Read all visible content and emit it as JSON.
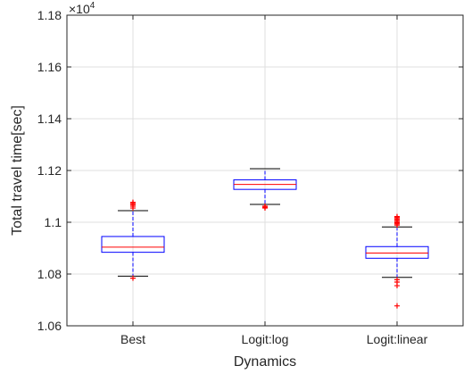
{
  "chart_data": {
    "type": "boxplot",
    "title": "",
    "xlabel": "Dynamics",
    "ylabel": "Total travel time[sec]",
    "y_exponent_label": "×10",
    "y_exponent_power": "4",
    "categories": [
      "Best",
      "Logit:log",
      "Logit:linear"
    ],
    "ylim": [
      1.06,
      1.18
    ],
    "yticks": [
      1.06,
      1.08,
      1.1,
      1.12,
      1.14,
      1.16,
      1.18
    ],
    "ytick_labels": [
      "1.06",
      "1.08",
      "1.1",
      "1.12",
      "1.14",
      "1.16",
      "1.18"
    ],
    "grid": true,
    "box_color": "#0000ff",
    "median_color": "#ff0000",
    "outlier_color": "#ff0000",
    "boxes": [
      {
        "category": "Best",
        "whisker_low": 1.0792,
        "q1": 1.0884,
        "median": 1.0904,
        "q3": 1.0945,
        "whisker_high": 1.1045,
        "outliers": [
          1.1055,
          1.1062,
          1.1068,
          1.1073,
          1.1077,
          1.0784
        ]
      },
      {
        "category": "Logit:log",
        "whisker_low": 1.1069,
        "q1": 1.1127,
        "median": 1.1146,
        "q3": 1.1164,
        "whisker_high": 1.1207,
        "outliers": [
          1.1058,
          1.1062,
          1.1055
        ]
      },
      {
        "category": "Logit:linear",
        "whisker_low": 1.0787,
        "q1": 1.0861,
        "median": 1.0881,
        "q3": 1.0906,
        "whisker_high": 1.0982,
        "outliers": [
          1.0989,
          1.0994,
          1.0998,
          1.1003,
          1.1008,
          1.1013,
          1.1018,
          1.1022,
          1.0778,
          1.0769,
          1.0755,
          1.0677
        ]
      }
    ]
  }
}
